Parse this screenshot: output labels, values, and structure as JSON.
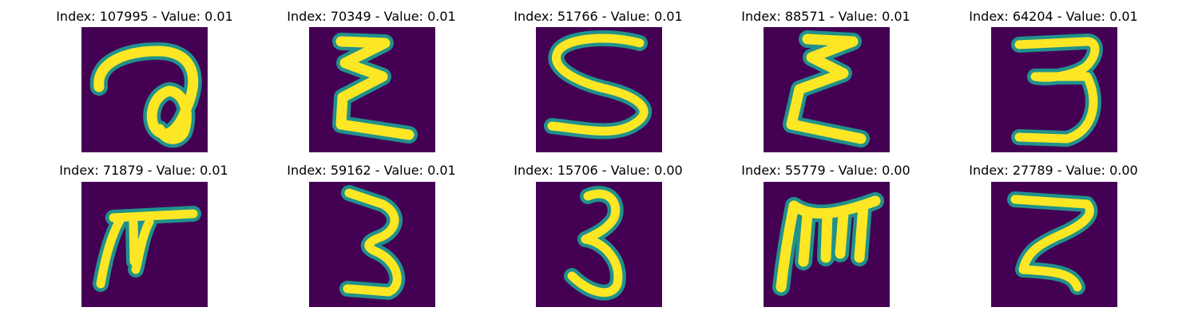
{
  "colors": {
    "background": "#440154",
    "glyph_edge": "#21918c",
    "glyph_core": "#fde725"
  },
  "panels": [
    {
      "title": "Index: 107995 - Value: 0.01",
      "glyph": "a-loop"
    },
    {
      "title": "Index: 70349 - Value: 0.01",
      "glyph": "epsilon"
    },
    {
      "title": "Index: 51766 - Value: 0.01",
      "glyph": "s-curve"
    },
    {
      "title": "Index: 88571 - Value: 0.01",
      "glyph": "epsilon"
    },
    {
      "title": "Index: 64204 - Value: 0.01",
      "glyph": "three-flat"
    },
    {
      "title": "Index: 71879 - Value: 0.01",
      "glyph": "pi-like"
    },
    {
      "title": "Index: 59162 - Value: 0.01",
      "glyph": "three"
    },
    {
      "title": "Index: 15706 - Value: 0.00",
      "glyph": "three-tall"
    },
    {
      "title": "Index: 55779 - Value: 0.00",
      "glyph": "m-like"
    },
    {
      "title": "Index: 27789 - Value: 0.00",
      "glyph": "z-like"
    }
  ]
}
